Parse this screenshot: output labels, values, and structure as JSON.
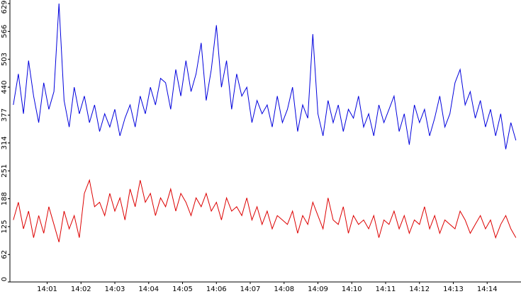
{
  "chart_data": {
    "type": "line",
    "x": [
      0,
      0.15,
      0.3,
      0.45,
      0.6,
      0.75,
      0.9,
      1.05,
      1.2,
      1.35,
      1.5,
      1.65,
      1.8,
      1.95,
      2.1,
      2.25,
      2.4,
      2.55,
      2.7,
      2.85,
      3,
      3.15,
      3.3,
      3.45,
      3.6,
      3.75,
      3.9,
      4.05,
      4.2,
      4.35,
      4.5,
      4.65,
      4.8,
      4.95,
      5.1,
      5.25,
      5.4,
      5.55,
      5.7,
      5.85,
      6,
      6.15,
      6.3,
      6.45,
      6.6,
      6.75,
      6.9,
      7.05,
      7.2,
      7.35,
      7.5,
      7.65,
      7.8,
      7.95,
      8.1,
      8.25,
      8.4,
      8.55,
      8.7,
      8.85,
      9,
      9.15,
      9.3,
      9.45,
      9.6,
      9.75,
      9.9,
      10.05,
      10.2,
      10.35,
      10.5,
      10.65,
      10.8,
      10.95,
      11.1,
      11.25,
      11.4,
      11.55,
      11.7,
      11.85,
      12,
      12.15,
      12.3,
      12.45,
      12.6,
      12.75,
      12.9,
      13.05,
      13.2,
      13.35,
      13.5,
      13.65,
      13.8,
      13.95,
      14.1,
      14.25,
      14.4,
      14.55,
      14.7,
      14.85
    ],
    "series": [
      {
        "color": "#0000dd",
        "values": [
          400,
          470,
          380,
          500,
          420,
          360,
          450,
          390,
          430,
          629,
          410,
          350,
          440,
          380,
          420,
          360,
          400,
          340,
          380,
          350,
          390,
          330,
          370,
          400,
          350,
          420,
          380,
          440,
          400,
          460,
          450,
          390,
          480,
          420,
          500,
          430,
          470,
          540,
          410,
          480,
          580,
          440,
          500,
          390,
          470,
          420,
          440,
          360,
          410,
          380,
          400,
          350,
          420,
          360,
          390,
          440,
          340,
          400,
          370,
          560,
          380,
          330,
          410,
          360,
          400,
          340,
          390,
          370,
          420,
          350,
          380,
          330,
          400,
          360,
          390,
          420,
          340,
          380,
          310,
          400,
          360,
          390,
          330,
          370,
          420,
          350,
          380,
          450,
          480,
          400,
          430,
          370,
          410,
          350,
          390,
          330,
          380,
          300,
          360,
          320
        ]
      },
      {
        "color": "#dd0000",
        "values": [
          140,
          180,
          120,
          160,
          100,
          150,
          110,
          170,
          130,
          90,
          160,
          120,
          150,
          100,
          200,
          230,
          170,
          180,
          150,
          200,
          160,
          190,
          140,
          210,
          170,
          230,
          180,
          200,
          150,
          190,
          170,
          210,
          160,
          200,
          180,
          150,
          190,
          170,
          200,
          160,
          180,
          140,
          190,
          160,
          170,
          150,
          190,
          140,
          170,
          130,
          160,
          120,
          150,
          140,
          130,
          160,
          110,
          150,
          130,
          180,
          150,
          120,
          190,
          140,
          130,
          170,
          110,
          150,
          130,
          140,
          120,
          150,
          100,
          140,
          130,
          160,
          120,
          150,
          110,
          140,
          130,
          170,
          120,
          150,
          110,
          140,
          130,
          120,
          160,
          140,
          110,
          130,
          150,
          120,
          140,
          100,
          130,
          150,
          120,
          100
        ]
      }
    ],
    "xlim": [
      -0.1,
      15.0
    ],
    "xticks": [
      {
        "value": 1,
        "label": "14:01"
      },
      {
        "value": 2,
        "label": "14:02"
      },
      {
        "value": 3,
        "label": "14:03"
      },
      {
        "value": 4,
        "label": "14:04"
      },
      {
        "value": 5,
        "label": "14:05"
      },
      {
        "value": 6,
        "label": "14:06"
      },
      {
        "value": 7,
        "label": "14:07"
      },
      {
        "value": 8,
        "label": "14:08"
      },
      {
        "value": 9,
        "label": "14:09"
      },
      {
        "value": 10,
        "label": "14:10"
      },
      {
        "value": 11,
        "label": "14:11"
      },
      {
        "value": 12,
        "label": "14:12"
      },
      {
        "value": 13,
        "label": "14:13"
      },
      {
        "value": 14,
        "label": "14:14"
      }
    ],
    "ylim": [
      0,
      629
    ],
    "yticks": [
      0,
      62,
      125,
      188,
      251,
      314,
      377,
      440,
      503,
      566,
      629
    ]
  }
}
